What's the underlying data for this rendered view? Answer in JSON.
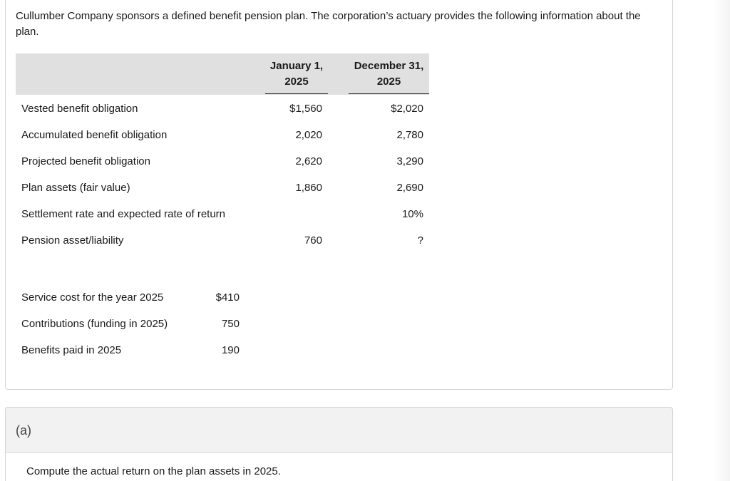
{
  "intro": "Cullumber Company sponsors a defined benefit pension plan. The corporation’s actuary provides the following information about the plan.",
  "table": {
    "col1_header": "January 1, 2025",
    "col2_header": "December 31, 2025",
    "rows": [
      {
        "label": "Vested benefit obligation",
        "jan": "$1,560",
        "dec": "$2,020"
      },
      {
        "label": "Accumulated benefit obligation",
        "jan": "2,020",
        "dec": "2,780"
      },
      {
        "label": "Projected benefit obligation",
        "jan": "2,620",
        "dec": "3,290"
      },
      {
        "label": "Plan assets (fair value)",
        "jan": "1,860",
        "dec": "2,690"
      },
      {
        "label": "Settlement rate and expected rate of return",
        "jan": "",
        "dec": "10%"
      },
      {
        "label": "Pension asset/liability",
        "jan": "760",
        "dec": "?"
      }
    ]
  },
  "extra": [
    {
      "label": "Service cost for the year 2025",
      "value": "$410"
    },
    {
      "label": "Contributions (funding in 2025)",
      "value": "750"
    },
    {
      "label": "Benefits paid in 2025",
      "value": "190"
    }
  ],
  "part": {
    "label": "(a)",
    "question": "Compute the actual return on the plan assets in 2025."
  }
}
